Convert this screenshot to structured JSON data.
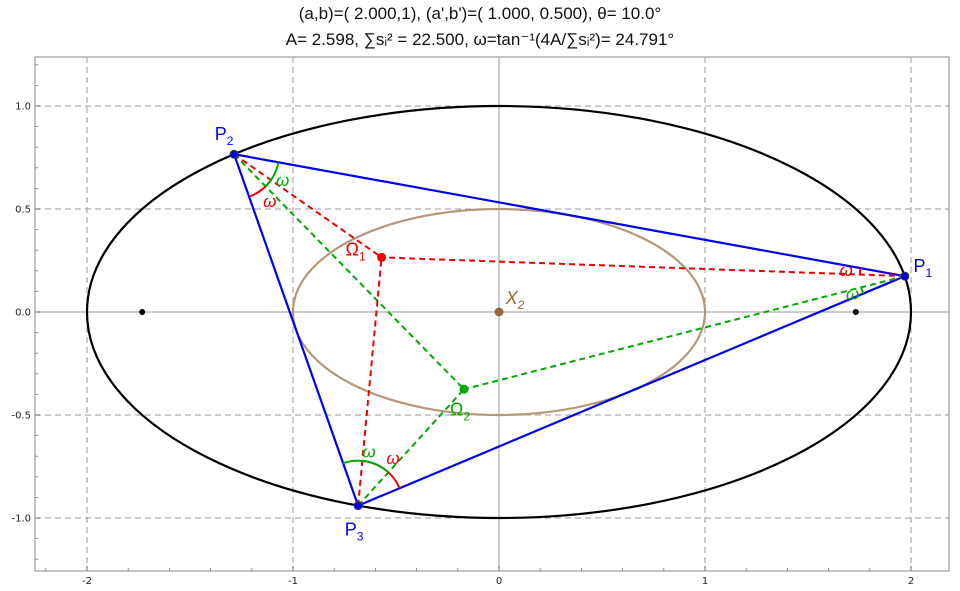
{
  "title": {
    "line1": "(a,b)=(  2.000,1), (a',b')=(  1.000,  0.500), θ= 10.0°",
    "line2": "A=  2.598, ∑sᵢ² = 22.500, ω=tan⁻¹(4A/∑sᵢ²)= 24.791°"
  },
  "chart_data": {
    "type": "scatter",
    "xlim": [
      -2.25,
      2.15
    ],
    "ylim": [
      -1.26,
      1.22
    ],
    "grid": true,
    "grid_style": "dashed",
    "x_ticks": [
      -2,
      -1,
      0,
      1,
      2
    ],
    "x_tick_labels": [
      "-2",
      "-1",
      "0",
      "1",
      "2"
    ],
    "y_ticks": [
      -1.0,
      -0.5,
      0.0,
      0.5,
      1.0
    ],
    "y_tick_labels": [
      "-1.0",
      "-0.5",
      "0.0",
      "0.5",
      "1.0"
    ],
    "outer_ellipse": {
      "center": [
        0,
        0
      ],
      "a": 2.0,
      "b": 1.0,
      "color": "#000000"
    },
    "inner_ellipse": {
      "center": [
        0,
        0
      ],
      "a": 1.0,
      "b": 0.5,
      "color": "#b5977a"
    },
    "foci": [
      [
        -1.732,
        0
      ],
      [
        1.732,
        0
      ]
    ],
    "triangle": {
      "color": "#0000ee",
      "vertices": [
        {
          "name": "P1",
          "label_main": "P",
          "label_sub": "1",
          "x": 1.97,
          "y": 0.174
        },
        {
          "name": "P2",
          "label_main": "P",
          "label_sub": "2",
          "x": -1.286,
          "y": 0.766
        },
        {
          "name": "P3",
          "label_main": "P",
          "label_sub": "3",
          "x": -0.684,
          "y": -0.94
        }
      ]
    },
    "brocard_points": [
      {
        "name": "Omega1",
        "label_main": "Ω",
        "label_sub": "1",
        "x": -0.57,
        "y": 0.265,
        "color": "#ee0000"
      },
      {
        "name": "Omega2",
        "label_main": "Ω",
        "label_sub": "2",
        "x": -0.17,
        "y": -0.375,
        "color": "#00aa00"
      }
    ],
    "center_point": {
      "name": "X2",
      "label_main": "X",
      "label_sub": "2",
      "x": 0,
      "y": 0,
      "color": "#9a6a3a"
    },
    "angle_label": "ω",
    "angle_deg": 24.791
  }
}
